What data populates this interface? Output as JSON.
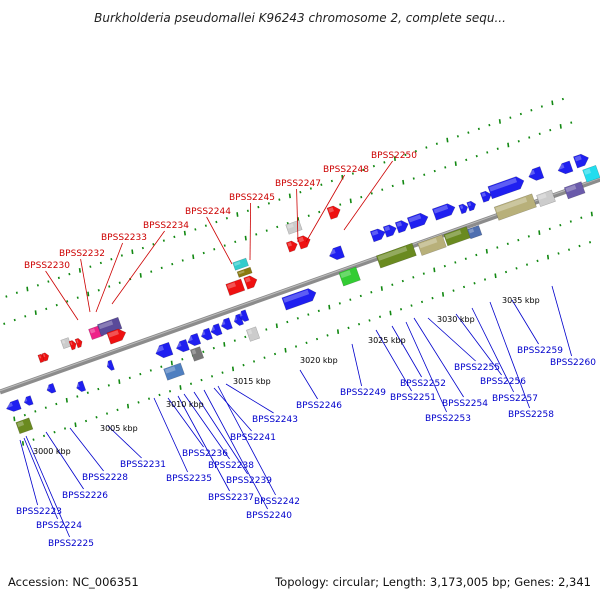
{
  "title": "Burkholderia pseudomallei K96243 chromosome 2, complete sequ...",
  "footer": {
    "accession": "Accession: NC_006351",
    "summary": "Topology: circular; Length: 3,173,005 bp; Genes: 2,341"
  },
  "colors": {
    "upper_labels": "#cc0000",
    "lower_labels": "#0000cc",
    "backbone": "#8c8c8c",
    "ticks": "#118811"
  },
  "scale_ticks": [
    "3000 kbp",
    "3005 kbp",
    "3010 kbp",
    "3015 kbp",
    "3020 kbp",
    "3025 kbp",
    "3030 kbp",
    "3035 kbp"
  ],
  "upper_labels": [
    "BPSS2230",
    "BPSS2232",
    "BPSS2233",
    "BPSS2234",
    "BPSS2244",
    "BPSS2245",
    "BPSS2247",
    "BPSS2248",
    "BPSS2250"
  ],
  "lower_labels": [
    "BPSS2223",
    "BPSS2224",
    "BPSS2225",
    "BPSS2226",
    "BPSS2228",
    "BPSS2231",
    "BPSS2235",
    "BPSS2236",
    "BPSS2237",
    "BPSS2238",
    "BPSS2239",
    "BPSS2240",
    "BPSS2241",
    "BPSS2242",
    "BPSS2243",
    "BPSS2246",
    "BPSS2249",
    "BPSS2251",
    "BPSS2252",
    "BPSS2253",
    "BPSS2254",
    "BPSS2255",
    "BPSS2256",
    "BPSS2257",
    "BPSS2258",
    "BPSS2259",
    "BPSS2260"
  ]
}
